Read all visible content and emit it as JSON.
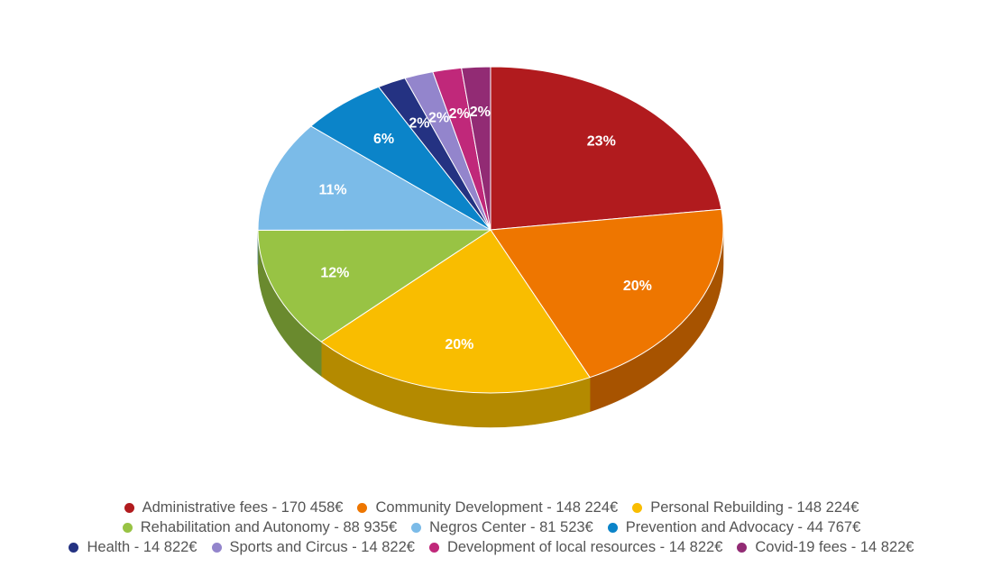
{
  "chart_data": {
    "type": "pie",
    "title": "",
    "slices": [
      {
        "label": "Administrative fees - 170 458€",
        "value": 170458,
        "percent_label": "23%",
        "color": "#b11b1e",
        "side_color": "#7a1314"
      },
      {
        "label": "Community Development - 148 224€",
        "value": 148224,
        "percent_label": "20%",
        "color": "#ee7600",
        "side_color": "#a75300"
      },
      {
        "label": "Personal Rebuilding - 148 224€",
        "value": 148224,
        "percent_label": "20%",
        "color": "#f9bd00",
        "side_color": "#b48a00"
      },
      {
        "label": "Rehabilitation and Autonomy - 88 935€",
        "value": 88935,
        "percent_label": "12%",
        "color": "#98c344",
        "side_color": "#6a8a2e"
      },
      {
        "label": "Negros Center - 81 523€",
        "value": 81523,
        "percent_label": "11%",
        "color": "#7bbbe8",
        "side_color": "#5485a6"
      },
      {
        "label": "Prevention and Advocacy - 44 767€",
        "value": 44767,
        "percent_label": "6%",
        "color": "#0b84c9",
        "side_color": "#075d8e"
      },
      {
        "label": "Health - 14 822€",
        "value": 14822,
        "percent_label": "2%",
        "color": "#243282",
        "side_color": "#18225b"
      },
      {
        "label": "Sports and Circus - 14 822€",
        "value": 14822,
        "percent_label": "2%",
        "color": "#9385cc",
        "side_color": "#675d90"
      },
      {
        "label": "Development of local resources - 14 822€",
        "value": 14822,
        "percent_label": "2%",
        "color": "#c0287a",
        "side_color": "#871c56"
      },
      {
        "label": "Covid-19 fees - 14 822€",
        "value": 14822,
        "percent_label": "2%",
        "color": "#922b74",
        "side_color": "#671e52"
      }
    ],
    "legend_placement": "bottom"
  },
  "legend_rows": [
    [
      0,
      1,
      2
    ],
    [
      3,
      4,
      5
    ],
    [
      6,
      7,
      8,
      9
    ]
  ]
}
